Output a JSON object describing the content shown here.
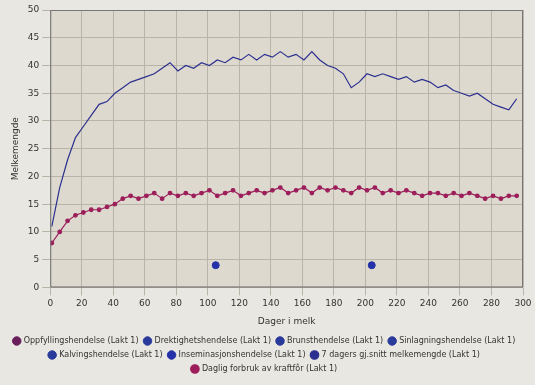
{
  "chart_data": {
    "type": "line",
    "x_label": "Dager i melk",
    "y_label": "Melkemengde",
    "x": [
      1,
      6,
      11,
      16,
      21,
      26,
      31,
      36,
      41,
      46,
      51,
      56,
      61,
      66,
      71,
      76,
      81,
      86,
      91,
      96,
      101,
      106,
      111,
      116,
      121,
      126,
      131,
      136,
      141,
      146,
      151,
      156,
      161,
      166,
      171,
      176,
      181,
      186,
      191,
      196,
      201,
      206,
      211,
      216,
      221,
      226,
      231,
      236,
      241,
      246,
      251,
      256,
      261,
      266,
      271,
      276,
      281,
      286,
      291,
      296
    ],
    "xlim": [
      0,
      300
    ],
    "xticks": [
      0,
      20,
      40,
      60,
      80,
      100,
      120,
      140,
      160,
      180,
      200,
      220,
      240,
      260,
      280,
      300
    ],
    "ylim": [
      0,
      50
    ],
    "yticks": [
      0,
      5,
      10,
      15,
      20,
      25,
      30,
      35,
      40,
      45,
      50
    ],
    "grid": true,
    "legend": "bottom",
    "series": [
      {
        "name": "Oppfyllingshendelse (Lakt 1)",
        "type": "scatter",
        "marker": "circle",
        "color": "#6a1f5c",
        "x": [],
        "values": []
      },
      {
        "name": "Drektighetshendelse (Lakt 1)",
        "type": "scatter",
        "marker": "circle",
        "color": "#2a3a9a",
        "x": [],
        "values": []
      },
      {
        "name": "Brunsthendelse (Lakt 1)",
        "type": "scatter",
        "marker": "circle",
        "color": "#2a3a9a",
        "x": [],
        "values": []
      },
      {
        "name": "Sinlagningshendelse (Lakt 1)",
        "type": "scatter",
        "marker": "circle",
        "color": "#2a3a9a",
        "x": [],
        "values": []
      },
      {
        "name": "Kalvingshendelse (Lakt 1)",
        "type": "scatter",
        "marker": "circle",
        "color": "#2a3a9a",
        "x": [],
        "values": []
      },
      {
        "name": "Inseminasjonshendelse (Lakt 1)",
        "type": "scatter",
        "marker": "circle",
        "color": "#2431a8",
        "x": [
          105,
          204
        ],
        "values": [
          4,
          4
        ]
      },
      {
        "name": "7 dagers gj.snitt melkemengde (Lakt 1)",
        "type": "line",
        "marker": "none",
        "color": "#2b2f8f",
        "values": [
          11,
          18,
          23,
          27,
          29,
          31,
          33,
          33.5,
          35,
          36,
          37,
          37.5,
          38,
          38.5,
          39.5,
          40.5,
          39,
          40,
          39.5,
          40.5,
          40,
          41,
          40.5,
          41.5,
          41,
          42,
          41,
          42,
          41.5,
          42.5,
          41.5,
          42,
          41,
          42.5,
          41,
          40,
          39.5,
          38.5,
          36,
          37,
          38.5,
          38,
          38.5,
          38,
          37.5,
          38,
          37,
          37.5,
          37,
          36,
          36.5,
          35.5,
          35,
          34.5,
          35,
          34,
          33,
          32.5,
          32,
          34
        ]
      },
      {
        "name": "Daglig forbruk av kraftfôr (Lakt 1)",
        "type": "line",
        "marker": "circle",
        "color": "#9c1e5a",
        "values": [
          8,
          10,
          12,
          13,
          13.5,
          14,
          14,
          14.5,
          15,
          16,
          16.5,
          16,
          16.5,
          17,
          16,
          17,
          16.5,
          17,
          16.5,
          17,
          17.5,
          16.5,
          17,
          17.5,
          16.5,
          17,
          17.5,
          17,
          17.5,
          18,
          17,
          17.5,
          18,
          17,
          18,
          17.5,
          18,
          17.5,
          17,
          18,
          17.5,
          18,
          17,
          17.5,
          17,
          17.5,
          17,
          16.5,
          17,
          17,
          16.5,
          17,
          16.5,
          17,
          16.5,
          16,
          16.5,
          16,
          16.5,
          16.5
        ]
      }
    ]
  }
}
